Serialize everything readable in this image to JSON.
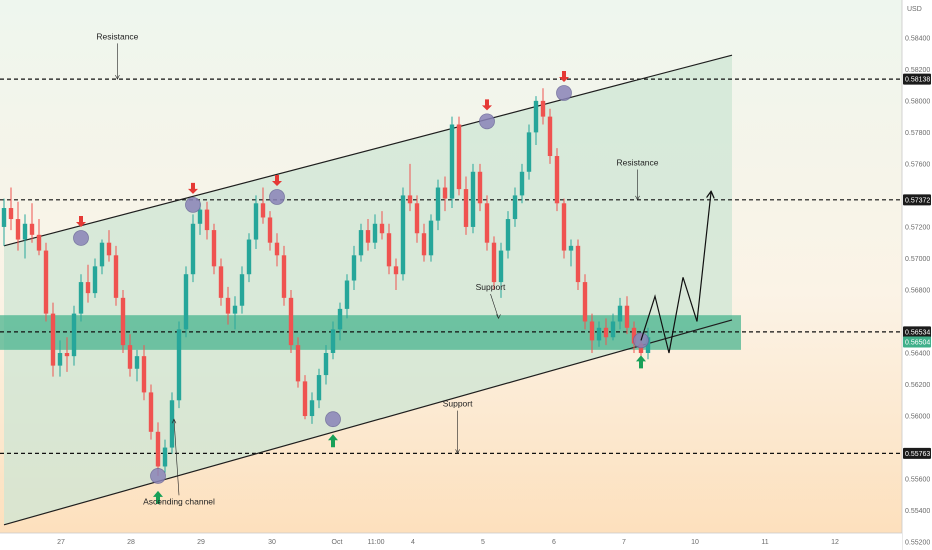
{
  "chart_data": {
    "type": "candlestick",
    "currency": "USD",
    "x_tick_labels": [
      "27",
      "28",
      "29",
      "30",
      "Oct",
      "11:00",
      "4",
      "5",
      "6",
      "7",
      "10",
      "11",
      "12"
    ],
    "y_tick_labels": [
      "0.55200",
      "0.55400",
      "0.55600",
      "0.56000",
      "0.56200",
      "0.56400",
      "0.56800",
      "0.57000",
      "0.57200",
      "0.57600",
      "0.57800",
      "0.58000",
      "0.58200",
      "0.58400"
    ],
    "ylim": [
      0.5515,
      0.5864
    ],
    "levels": [
      {
        "value": 0.58138,
        "label": "0.58138"
      },
      {
        "value": 0.57372,
        "label": "0.57372"
      },
      {
        "value": 0.56534,
        "label": "0.56534"
      },
      {
        "value": 0.55763,
        "label": "0.55763"
      }
    ],
    "price_badge": "0.56504",
    "support_zone": [
      0.5642,
      0.5664
    ],
    "annotations": [
      {
        "text": "Resistance",
        "x": 16.2,
        "y": 0.5839
      },
      {
        "text": "Resistance",
        "x": 90.5,
        "y": 0.5759
      },
      {
        "text": "Support",
        "x": 69.5,
        "y": 0.568
      },
      {
        "text": "Support",
        "x": 64.8,
        "y": 0.5606
      },
      {
        "text": "Ascending channel",
        "x": 25.0,
        "y": 0.5544
      }
    ],
    "channel": {
      "upper": [
        [
          0,
          0.5708
        ],
        [
          104,
          0.5829
        ]
      ],
      "lower": [
        [
          0,
          0.5531
        ],
        [
          104,
          0.5661
        ]
      ]
    },
    "ohlc": [
      [
        0.572,
        0.5738,
        0.5708,
        0.5732
      ],
      [
        0.5732,
        0.5745,
        0.5718,
        0.5725
      ],
      [
        0.5725,
        0.5736,
        0.5705,
        0.5712
      ],
      [
        0.5712,
        0.5728,
        0.57,
        0.5722
      ],
      [
        0.5722,
        0.5735,
        0.571,
        0.5715
      ],
      [
        0.5715,
        0.5725,
        0.5702,
        0.5705
      ],
      [
        0.5705,
        0.571,
        0.566,
        0.5665
      ],
      [
        0.5665,
        0.5672,
        0.5625,
        0.5632
      ],
      [
        0.5632,
        0.5648,
        0.5625,
        0.564
      ],
      [
        0.564,
        0.565,
        0.5628,
        0.5638
      ],
      [
        0.5638,
        0.567,
        0.5632,
        0.5665
      ],
      [
        0.5665,
        0.569,
        0.566,
        0.5685
      ],
      [
        0.5685,
        0.5696,
        0.5672,
        0.5678
      ],
      [
        0.5678,
        0.57,
        0.5675,
        0.5695
      ],
      [
        0.5695,
        0.5712,
        0.569,
        0.571
      ],
      [
        0.571,
        0.5718,
        0.5698,
        0.5702
      ],
      [
        0.5702,
        0.5708,
        0.567,
        0.5675
      ],
      [
        0.5675,
        0.568,
        0.564,
        0.5645
      ],
      [
        0.5645,
        0.5652,
        0.5625,
        0.563
      ],
      [
        0.563,
        0.5642,
        0.5622,
        0.5638
      ],
      [
        0.5638,
        0.5645,
        0.561,
        0.5615
      ],
      [
        0.5615,
        0.562,
        0.5585,
        0.559
      ],
      [
        0.559,
        0.5596,
        0.5562,
        0.5568
      ],
      [
        0.5568,
        0.5585,
        0.5564,
        0.558
      ],
      [
        0.558,
        0.5615,
        0.5576,
        0.561
      ],
      [
        0.561,
        0.566,
        0.5605,
        0.5655
      ],
      [
        0.5655,
        0.5695,
        0.565,
        0.569
      ],
      [
        0.569,
        0.5728,
        0.5685,
        0.5722
      ],
      [
        0.5722,
        0.5735,
        0.5715,
        0.5731
      ],
      [
        0.5731,
        0.5736,
        0.5712,
        0.5718
      ],
      [
        0.5718,
        0.5722,
        0.569,
        0.5695
      ],
      [
        0.5695,
        0.57,
        0.567,
        0.5675
      ],
      [
        0.5675,
        0.5682,
        0.5658,
        0.5665
      ],
      [
        0.5665,
        0.5676,
        0.5655,
        0.567
      ],
      [
        0.567,
        0.5695,
        0.5665,
        0.569
      ],
      [
        0.569,
        0.5716,
        0.5685,
        0.5712
      ],
      [
        0.5712,
        0.574,
        0.5706,
        0.5735
      ],
      [
        0.5735,
        0.5745,
        0.5722,
        0.5726
      ],
      [
        0.5726,
        0.573,
        0.5705,
        0.571
      ],
      [
        0.571,
        0.5716,
        0.5695,
        0.5702
      ],
      [
        0.5702,
        0.5708,
        0.567,
        0.5675
      ],
      [
        0.5675,
        0.568,
        0.564,
        0.5645
      ],
      [
        0.5645,
        0.565,
        0.5618,
        0.5622
      ],
      [
        0.5622,
        0.5626,
        0.5598,
        0.56
      ],
      [
        0.56,
        0.5615,
        0.5595,
        0.561
      ],
      [
        0.561,
        0.563,
        0.5605,
        0.5626
      ],
      [
        0.5626,
        0.5645,
        0.562,
        0.564
      ],
      [
        0.564,
        0.566,
        0.5636,
        0.5655
      ],
      [
        0.5655,
        0.5672,
        0.5648,
        0.5668
      ],
      [
        0.5668,
        0.569,
        0.5662,
        0.5686
      ],
      [
        0.5686,
        0.5708,
        0.568,
        0.5702
      ],
      [
        0.5702,
        0.5722,
        0.5698,
        0.5718
      ],
      [
        0.5718,
        0.5725,
        0.5705,
        0.571
      ],
      [
        0.571,
        0.5728,
        0.5706,
        0.5722
      ],
      [
        0.5722,
        0.573,
        0.5712,
        0.5716
      ],
      [
        0.5716,
        0.5722,
        0.569,
        0.5695
      ],
      [
        0.5695,
        0.57,
        0.568,
        0.569
      ],
      [
        0.569,
        0.5745,
        0.5686,
        0.574
      ],
      [
        0.574,
        0.576,
        0.573,
        0.5735
      ],
      [
        0.5735,
        0.574,
        0.571,
        0.5716
      ],
      [
        0.5716,
        0.5722,
        0.5698,
        0.5702
      ],
      [
        0.5702,
        0.5728,
        0.5698,
        0.5724
      ],
      [
        0.5724,
        0.575,
        0.5718,
        0.5745
      ],
      [
        0.5745,
        0.5752,
        0.573,
        0.5738
      ],
      [
        0.5738,
        0.579,
        0.5732,
        0.5785
      ],
      [
        0.5785,
        0.579,
        0.574,
        0.5744
      ],
      [
        0.5744,
        0.5752,
        0.5715,
        0.572
      ],
      [
        0.572,
        0.576,
        0.5716,
        0.5755
      ],
      [
        0.5755,
        0.576,
        0.573,
        0.5735
      ],
      [
        0.5735,
        0.574,
        0.5705,
        0.571
      ],
      [
        0.571,
        0.5714,
        0.568,
        0.5685
      ],
      [
        0.5685,
        0.571,
        0.5675,
        0.5705
      ],
      [
        0.5705,
        0.573,
        0.57,
        0.5725
      ],
      [
        0.5725,
        0.5745,
        0.572,
        0.574
      ],
      [
        0.574,
        0.576,
        0.5735,
        0.5755
      ],
      [
        0.5755,
        0.5785,
        0.575,
        0.578
      ],
      [
        0.578,
        0.5803,
        0.5772,
        0.58
      ],
      [
        0.58,
        0.5808,
        0.5785,
        0.579
      ],
      [
        0.579,
        0.5795,
        0.576,
        0.5765
      ],
      [
        0.5765,
        0.577,
        0.573,
        0.5735
      ],
      [
        0.5735,
        0.5738,
        0.57,
        0.5705
      ],
      [
        0.5705,
        0.5712,
        0.5695,
        0.5708
      ],
      [
        0.5708,
        0.5712,
        0.568,
        0.5685
      ],
      [
        0.5685,
        0.569,
        0.5655,
        0.566
      ],
      [
        0.566,
        0.5665,
        0.564,
        0.5648
      ],
      [
        0.5648,
        0.566,
        0.5644,
        0.5656
      ],
      [
        0.5656,
        0.5662,
        0.5645,
        0.565
      ],
      [
        0.565,
        0.5665,
        0.5648,
        0.566
      ],
      [
        0.566,
        0.5675,
        0.5655,
        0.567
      ],
      [
        0.567,
        0.5676,
        0.5652,
        0.5656
      ],
      [
        0.5656,
        0.566,
        0.564,
        0.5646
      ],
      [
        0.5646,
        0.5652,
        0.5632,
        0.564
      ],
      [
        0.564,
        0.5656,
        0.5636,
        0.565
      ]
    ],
    "markers": {
      "resistance_touches": [
        [
          11,
          0.5713
        ],
        [
          27,
          0.5734
        ],
        [
          39,
          0.5739
        ],
        [
          69,
          0.5787
        ],
        [
          80,
          0.5805
        ]
      ],
      "support_touches": [
        [
          22,
          0.5562
        ],
        [
          47,
          0.5598
        ],
        [
          91,
          0.5648
        ]
      ],
      "down_arrows_at": [
        11,
        27,
        39,
        69,
        80
      ],
      "up_arrows_at": [
        22,
        47,
        91
      ]
    },
    "projection": [
      [
        91,
        0.5648
      ],
      [
        93,
        0.5676
      ],
      [
        95,
        0.564
      ],
      [
        97,
        0.5688
      ],
      [
        99,
        0.566
      ],
      [
        101,
        0.5742
      ]
    ],
    "colors": {
      "up": "#26a69a",
      "down": "#ef5350",
      "channel_fill": "#cde6d4",
      "zone": "#3fb08a",
      "marker": "#8a84b8",
      "arrow_up": "#18a058",
      "arrow_down": "#e53935",
      "bg_top": "#eef6ee",
      "bg_bottom": "#fde0bd"
    }
  }
}
